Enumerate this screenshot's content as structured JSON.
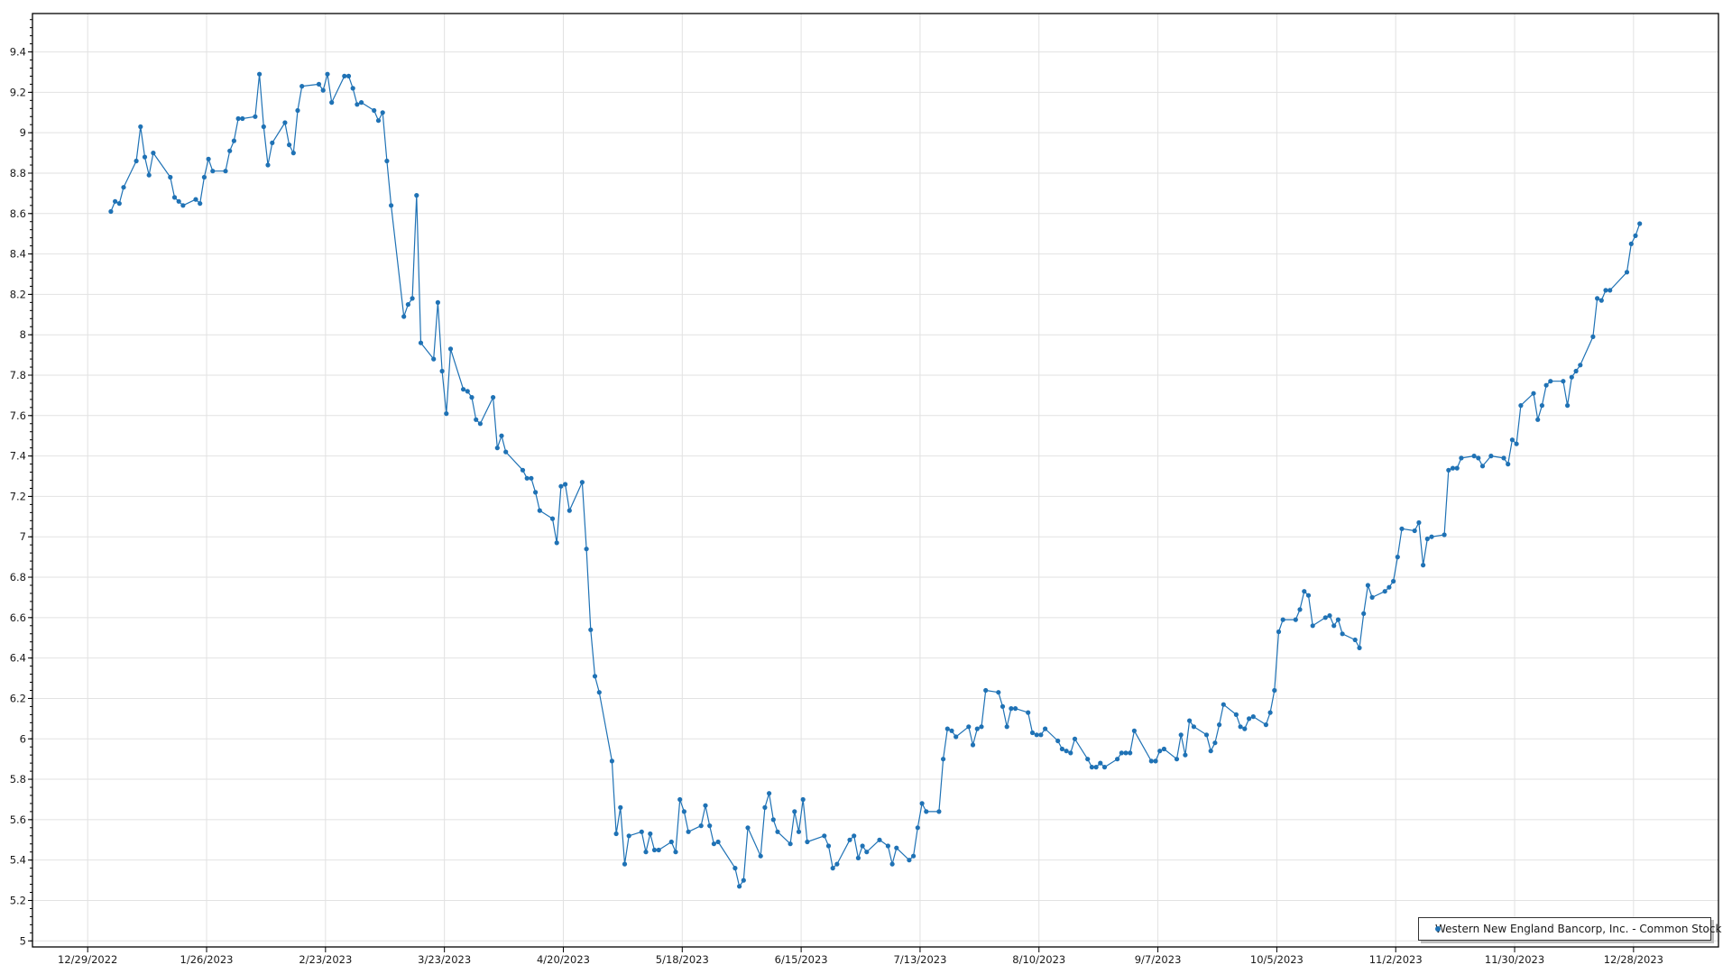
{
  "chart_data": {
    "type": "line",
    "title": "",
    "xlabel": "",
    "ylabel": "",
    "x_axis_type": "date",
    "xlim": [
      "2022-12-16",
      "2024-01-17"
    ],
    "ylim": [
      4.97,
      9.59
    ],
    "x_ticks": [
      "12/29/2022",
      "1/26/2023",
      "2/23/2023",
      "3/23/2023",
      "4/20/2023",
      "5/18/2023",
      "6/15/2023",
      "7/13/2023",
      "8/10/2023",
      "9/7/2023",
      "10/5/2023",
      "11/2/2023",
      "11/30/2023",
      "12/28/2023"
    ],
    "y_ticks": [
      "5",
      "5.2",
      "5.4",
      "5.6",
      "5.8",
      "6",
      "6.2",
      "6.4",
      "6.6",
      "6.8",
      "7",
      "7.2",
      "7.4",
      "7.6",
      "7.8",
      "8",
      "8.2",
      "8.4",
      "8.6",
      "8.8",
      "9",
      "9.2",
      "9.4"
    ],
    "grid": true,
    "markers": true,
    "legend": {
      "placement": "bottom-right"
    },
    "series": [
      {
        "name": "Western New England Bancorp, Inc. - Common Stock",
        "color": "#1f72b5",
        "points": [
          [
            "2023-01-03",
            8.61
          ],
          [
            "2023-01-04",
            8.66
          ],
          [
            "2023-01-05",
            8.65
          ],
          [
            "2023-01-06",
            8.73
          ],
          [
            "2023-01-09",
            8.86
          ],
          [
            "2023-01-10",
            9.03
          ],
          [
            "2023-01-11",
            8.88
          ],
          [
            "2023-01-12",
            8.79
          ],
          [
            "2023-01-13",
            8.9
          ],
          [
            "2023-01-17",
            8.78
          ],
          [
            "2023-01-18",
            8.68
          ],
          [
            "2023-01-19",
            8.66
          ],
          [
            "2023-01-20",
            8.64
          ],
          [
            "2023-01-23",
            8.67
          ],
          [
            "2023-01-24",
            8.65
          ],
          [
            "2023-01-25",
            8.78
          ],
          [
            "2023-01-26",
            8.87
          ],
          [
            "2023-01-27",
            8.81
          ],
          [
            "2023-01-30",
            8.81
          ],
          [
            "2023-01-31",
            8.91
          ],
          [
            "2023-02-01",
            8.96
          ],
          [
            "2023-02-02",
            9.07
          ],
          [
            "2023-02-03",
            9.07
          ],
          [
            "2023-02-06",
            9.08
          ],
          [
            "2023-02-07",
            9.29
          ],
          [
            "2023-02-08",
            9.03
          ],
          [
            "2023-02-09",
            8.84
          ],
          [
            "2023-02-10",
            8.95
          ],
          [
            "2023-02-13",
            9.05
          ],
          [
            "2023-02-14",
            8.94
          ],
          [
            "2023-02-15",
            8.9
          ],
          [
            "2023-02-16",
            9.11
          ],
          [
            "2023-02-17",
            9.23
          ],
          [
            "2023-02-21",
            9.24
          ],
          [
            "2023-02-22",
            9.21
          ],
          [
            "2023-02-23",
            9.29
          ],
          [
            "2023-02-24",
            9.15
          ],
          [
            "2023-02-27",
            9.28
          ],
          [
            "2023-02-28",
            9.28
          ],
          [
            "2023-03-01",
            9.22
          ],
          [
            "2023-03-02",
            9.14
          ],
          [
            "2023-03-03",
            9.15
          ],
          [
            "2023-03-06",
            9.11
          ],
          [
            "2023-03-07",
            9.06
          ],
          [
            "2023-03-08",
            9.1
          ],
          [
            "2023-03-09",
            8.86
          ],
          [
            "2023-03-10",
            8.64
          ],
          [
            "2023-03-13",
            8.09
          ],
          [
            "2023-03-14",
            8.15
          ],
          [
            "2023-03-15",
            8.18
          ],
          [
            "2023-03-16",
            8.69
          ],
          [
            "2023-03-17",
            7.96
          ],
          [
            "2023-03-20",
            7.88
          ],
          [
            "2023-03-21",
            8.16
          ],
          [
            "2023-03-22",
            7.82
          ],
          [
            "2023-03-23",
            7.61
          ],
          [
            "2023-03-24",
            7.93
          ],
          [
            "2023-03-27",
            7.73
          ],
          [
            "2023-03-28",
            7.72
          ],
          [
            "2023-03-29",
            7.69
          ],
          [
            "2023-03-30",
            7.58
          ],
          [
            "2023-03-31",
            7.56
          ],
          [
            "2023-04-03",
            7.69
          ],
          [
            "2023-04-04",
            7.44
          ],
          [
            "2023-04-05",
            7.5
          ],
          [
            "2023-04-06",
            7.42
          ],
          [
            "2023-04-10",
            7.33
          ],
          [
            "2023-04-11",
            7.29
          ],
          [
            "2023-04-12",
            7.29
          ],
          [
            "2023-04-13",
            7.22
          ],
          [
            "2023-04-14",
            7.13
          ],
          [
            "2023-04-17",
            7.09
          ],
          [
            "2023-04-18",
            6.97
          ],
          [
            "2023-04-19",
            7.25
          ],
          [
            "2023-04-20",
            7.26
          ],
          [
            "2023-04-21",
            7.13
          ],
          [
            "2023-04-24",
            7.27
          ],
          [
            "2023-04-25",
            6.94
          ],
          [
            "2023-04-26",
            6.54
          ],
          [
            "2023-04-27",
            6.31
          ],
          [
            "2023-04-28",
            6.23
          ],
          [
            "2023-05-01",
            5.89
          ],
          [
            "2023-05-02",
            5.53
          ],
          [
            "2023-05-03",
            5.66
          ],
          [
            "2023-05-04",
            5.38
          ],
          [
            "2023-05-05",
            5.52
          ],
          [
            "2023-05-08",
            5.54
          ],
          [
            "2023-05-09",
            5.44
          ],
          [
            "2023-05-10",
            5.53
          ],
          [
            "2023-05-11",
            5.45
          ],
          [
            "2023-05-12",
            5.45
          ],
          [
            "2023-05-15",
            5.49
          ],
          [
            "2023-05-16",
            5.44
          ],
          [
            "2023-05-17",
            5.7
          ],
          [
            "2023-05-18",
            5.64
          ],
          [
            "2023-05-19",
            5.54
          ],
          [
            "2023-05-22",
            5.57
          ],
          [
            "2023-05-23",
            5.67
          ],
          [
            "2023-05-24",
            5.57
          ],
          [
            "2023-05-25",
            5.48
          ],
          [
            "2023-05-26",
            5.49
          ],
          [
            "2023-05-30",
            5.36
          ],
          [
            "2023-05-31",
            5.27
          ],
          [
            "2023-06-01",
            5.3
          ],
          [
            "2023-06-02",
            5.56
          ],
          [
            "2023-06-05",
            5.42
          ],
          [
            "2023-06-06",
            5.66
          ],
          [
            "2023-06-07",
            5.73
          ],
          [
            "2023-06-08",
            5.6
          ],
          [
            "2023-06-09",
            5.54
          ],
          [
            "2023-06-12",
            5.48
          ],
          [
            "2023-06-13",
            5.64
          ],
          [
            "2023-06-14",
            5.54
          ],
          [
            "2023-06-15",
            5.7
          ],
          [
            "2023-06-16",
            5.49
          ],
          [
            "2023-06-20",
            5.52
          ],
          [
            "2023-06-21",
            5.47
          ],
          [
            "2023-06-22",
            5.36
          ],
          [
            "2023-06-23",
            5.38
          ],
          [
            "2023-06-26",
            5.5
          ],
          [
            "2023-06-27",
            5.52
          ],
          [
            "2023-06-28",
            5.41
          ],
          [
            "2023-06-29",
            5.47
          ],
          [
            "2023-06-30",
            5.44
          ],
          [
            "2023-07-03",
            5.5
          ],
          [
            "2023-07-05",
            5.47
          ],
          [
            "2023-07-06",
            5.38
          ],
          [
            "2023-07-07",
            5.46
          ],
          [
            "2023-07-10",
            5.4
          ],
          [
            "2023-07-11",
            5.42
          ],
          [
            "2023-07-12",
            5.56
          ],
          [
            "2023-07-13",
            5.68
          ],
          [
            "2023-07-14",
            5.64
          ],
          [
            "2023-07-17",
            5.64
          ],
          [
            "2023-07-18",
            5.9
          ],
          [
            "2023-07-19",
            6.05
          ],
          [
            "2023-07-20",
            6.04
          ],
          [
            "2023-07-21",
            6.01
          ],
          [
            "2023-07-24",
            6.06
          ],
          [
            "2023-07-25",
            5.97
          ],
          [
            "2023-07-26",
            6.05
          ],
          [
            "2023-07-27",
            6.06
          ],
          [
            "2023-07-28",
            6.24
          ],
          [
            "2023-07-31",
            6.23
          ],
          [
            "2023-08-01",
            6.16
          ],
          [
            "2023-08-02",
            6.06
          ],
          [
            "2023-08-03",
            6.15
          ],
          [
            "2023-08-04",
            6.15
          ],
          [
            "2023-08-07",
            6.13
          ],
          [
            "2023-08-08",
            6.03
          ],
          [
            "2023-08-09",
            6.02
          ],
          [
            "2023-08-10",
            6.02
          ],
          [
            "2023-08-11",
            6.05
          ],
          [
            "2023-08-14",
            5.99
          ],
          [
            "2023-08-15",
            5.95
          ],
          [
            "2023-08-16",
            5.94
          ],
          [
            "2023-08-17",
            5.93
          ],
          [
            "2023-08-18",
            6.0
          ],
          [
            "2023-08-21",
            5.9
          ],
          [
            "2023-08-22",
            5.86
          ],
          [
            "2023-08-23",
            5.86
          ],
          [
            "2023-08-24",
            5.88
          ],
          [
            "2023-08-25",
            5.86
          ],
          [
            "2023-08-28",
            5.9
          ],
          [
            "2023-08-29",
            5.93
          ],
          [
            "2023-08-30",
            5.93
          ],
          [
            "2023-08-31",
            5.93
          ],
          [
            "2023-09-01",
            6.04
          ],
          [
            "2023-09-05",
            5.89
          ],
          [
            "2023-09-06",
            5.89
          ],
          [
            "2023-09-07",
            5.94
          ],
          [
            "2023-09-08",
            5.95
          ],
          [
            "2023-09-11",
            5.9
          ],
          [
            "2023-09-12",
            6.02
          ],
          [
            "2023-09-13",
            5.92
          ],
          [
            "2023-09-14",
            6.09
          ],
          [
            "2023-09-15",
            6.06
          ],
          [
            "2023-09-18",
            6.02
          ],
          [
            "2023-09-19",
            5.94
          ],
          [
            "2023-09-20",
            5.98
          ],
          [
            "2023-09-21",
            6.07
          ],
          [
            "2023-09-22",
            6.17
          ],
          [
            "2023-09-25",
            6.12
          ],
          [
            "2023-09-26",
            6.06
          ],
          [
            "2023-09-27",
            6.05
          ],
          [
            "2023-09-28",
            6.1
          ],
          [
            "2023-09-29",
            6.11
          ],
          [
            "2023-10-02",
            6.07
          ],
          [
            "2023-10-03",
            6.13
          ],
          [
            "2023-10-04",
            6.24
          ],
          [
            "2023-10-05",
            6.53
          ],
          [
            "2023-10-06",
            6.59
          ],
          [
            "2023-10-09",
            6.59
          ],
          [
            "2023-10-10",
            6.64
          ],
          [
            "2023-10-11",
            6.73
          ],
          [
            "2023-10-12",
            6.71
          ],
          [
            "2023-10-13",
            6.56
          ],
          [
            "2023-10-16",
            6.6
          ],
          [
            "2023-10-17",
            6.61
          ],
          [
            "2023-10-18",
            6.56
          ],
          [
            "2023-10-19",
            6.59
          ],
          [
            "2023-10-20",
            6.52
          ],
          [
            "2023-10-23",
            6.49
          ],
          [
            "2023-10-24",
            6.45
          ],
          [
            "2023-10-25",
            6.62
          ],
          [
            "2023-10-26",
            6.76
          ],
          [
            "2023-10-27",
            6.7
          ],
          [
            "2023-10-30",
            6.73
          ],
          [
            "2023-10-31",
            6.75
          ],
          [
            "2023-11-01",
            6.78
          ],
          [
            "2023-11-02",
            6.9
          ],
          [
            "2023-11-03",
            7.04
          ],
          [
            "2023-11-06",
            7.03
          ],
          [
            "2023-11-07",
            7.07
          ],
          [
            "2023-11-08",
            6.86
          ],
          [
            "2023-11-09",
            6.99
          ],
          [
            "2023-11-10",
            7.0
          ],
          [
            "2023-11-13",
            7.01
          ],
          [
            "2023-11-14",
            7.33
          ],
          [
            "2023-11-15",
            7.34
          ],
          [
            "2023-11-16",
            7.34
          ],
          [
            "2023-11-17",
            7.39
          ],
          [
            "2023-11-20",
            7.4
          ],
          [
            "2023-11-21",
            7.39
          ],
          [
            "2023-11-22",
            7.35
          ],
          [
            "2023-11-24",
            7.4
          ],
          [
            "2023-11-27",
            7.39
          ],
          [
            "2023-11-28",
            7.36
          ],
          [
            "2023-11-29",
            7.48
          ],
          [
            "2023-11-30",
            7.46
          ],
          [
            "2023-12-01",
            7.65
          ],
          [
            "2023-12-04",
            7.71
          ],
          [
            "2023-12-05",
            7.58
          ],
          [
            "2023-12-06",
            7.65
          ],
          [
            "2023-12-07",
            7.75
          ],
          [
            "2023-12-08",
            7.77
          ],
          [
            "2023-12-11",
            7.77
          ],
          [
            "2023-12-12",
            7.65
          ],
          [
            "2023-12-13",
            7.79
          ],
          [
            "2023-12-14",
            7.82
          ],
          [
            "2023-12-15",
            7.85
          ],
          [
            "2023-12-18",
            7.99
          ],
          [
            "2023-12-19",
            8.18
          ],
          [
            "2023-12-20",
            8.17
          ],
          [
            "2023-12-21",
            8.22
          ],
          [
            "2023-12-22",
            8.22
          ],
          [
            "2023-12-26",
            8.31
          ],
          [
            "2023-12-27",
            8.45
          ],
          [
            "2023-12-28",
            8.49
          ],
          [
            "2023-12-29",
            8.55
          ]
        ]
      }
    ]
  }
}
